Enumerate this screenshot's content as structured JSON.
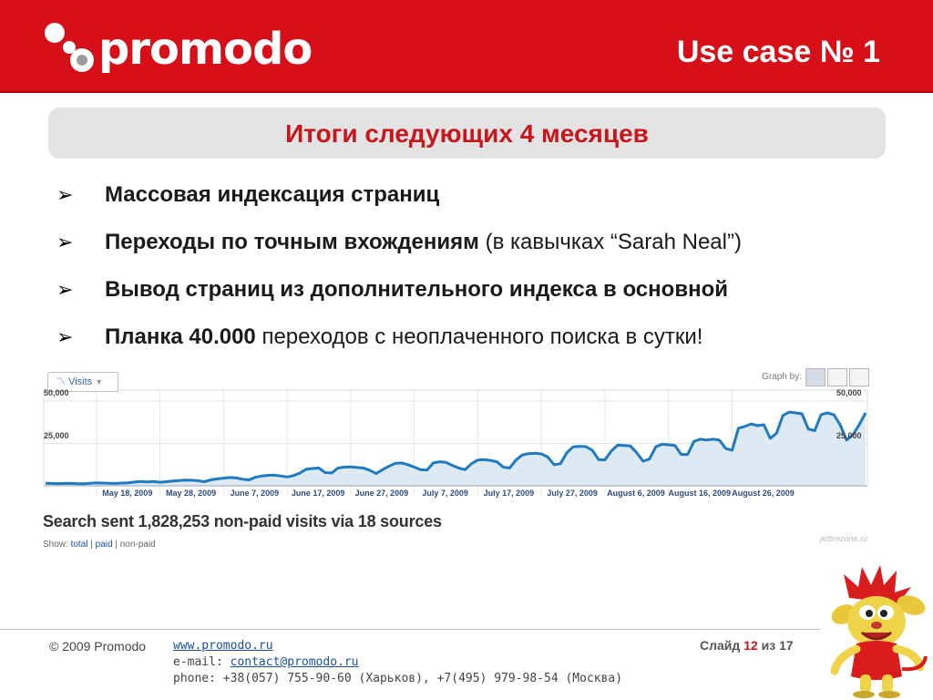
{
  "header": {
    "logo_text": "promodo",
    "title": "Use case № 1"
  },
  "subtitle": "Итоги следующих 4 месяцев",
  "bullets": [
    {
      "bold": "Массовая индексация страниц",
      "normal": ""
    },
    {
      "bold": "Переходы по точным вхождениям",
      "normal": " (в кавычках “Sarah Neal”)"
    },
    {
      "bold": "Вывод страниц из дополнительного индекса в основной",
      "normal": ""
    },
    {
      "bold": "Планка 40.000",
      "normal": " переходов с неоплаченного поиска в сутки!"
    }
  ],
  "analytics": {
    "tab_label": "Visits",
    "graph_by_label": "Graph by:",
    "summary": "Search sent 1,828,253 non-paid visits via 18 sources",
    "show_label": "Show:",
    "show_total": "total",
    "show_paid": "paid",
    "show_nonpaid": "non-paid",
    "watermark": "jetfirezone.ru"
  },
  "chart_data": {
    "type": "area",
    "y_tick_labels": [
      "50,000",
      "25,000"
    ],
    "ylim": [
      0,
      50000
    ],
    "grid": true,
    "x_tick_labels": [
      "May 18, 2009",
      "May 28, 2009",
      "June 7, 2009",
      "June 17, 2009",
      "June 27, 2009",
      "July 7, 2009",
      "July 17, 2009",
      "July 27, 2009",
      "August 6, 2009",
      "August 16, 2009",
      "August 26, 2009"
    ],
    "x_start": "May 10, 2009",
    "series": [
      {
        "color": "#1f7ac2",
        "fill": "#dde9f3",
        "values": [
          1500,
          1400,
          1300,
          1400,
          1500,
          1300,
          1200,
          1500,
          1700,
          1600,
          1500,
          1400,
          1600,
          1800,
          2200,
          2500,
          2300,
          2500,
          2100,
          2400,
          2800,
          3100,
          3400,
          3300,
          3000,
          2400,
          3500,
          4100,
          4500,
          4900,
          4600,
          3900,
          3500,
          5000,
          5800,
          6200,
          6300,
          5800,
          5200,
          6000,
          7500,
          9800,
          10200,
          10500,
          7800,
          7600,
          10500,
          11000,
          11200,
          10800,
          10500,
          9200,
          7200,
          9500,
          11500,
          13200,
          13500,
          12500,
          11000,
          9500,
          9300,
          13500,
          14200,
          13800,
          12000,
          10500,
          9500,
          13000,
          15200,
          15500,
          15000,
          14200,
          11000,
          10500,
          15200,
          18200,
          19000,
          19200,
          18800,
          17000,
          12500,
          13000,
          19500,
          23000,
          23300,
          23100,
          21000,
          15500,
          15300,
          20500,
          24000,
          23800,
          23500,
          19500,
          14500,
          15800,
          23000,
          24500,
          24200,
          23800,
          18500,
          18500,
          26200,
          27500,
          27000,
          27500,
          27000,
          22000,
          21000,
          34000,
          35000,
          36500,
          35500,
          36000,
          28000,
          31000,
          41500,
          43500,
          43000,
          42500,
          33500,
          32500,
          42000,
          43000,
          42000,
          36000,
          27000,
          30000,
          36000,
          43000
        ]
      }
    ]
  },
  "footer": {
    "copyright": "© 2009  Promodo",
    "website": "www.promodo.ru",
    "email_label": "e-mail: ",
    "email": "contact@promodo.ru",
    "phone": "phone: +38(057) 755-90-60 (Харьков), +7(495) 979-98-54 (Москва)",
    "slide_label": "Слайд",
    "slide_current": "12",
    "slide_of": "из",
    "slide_total": "17"
  },
  "colors": {
    "brand_red": "#d70f18",
    "title_red": "#c8161d",
    "line_blue": "#1f7ac2"
  }
}
